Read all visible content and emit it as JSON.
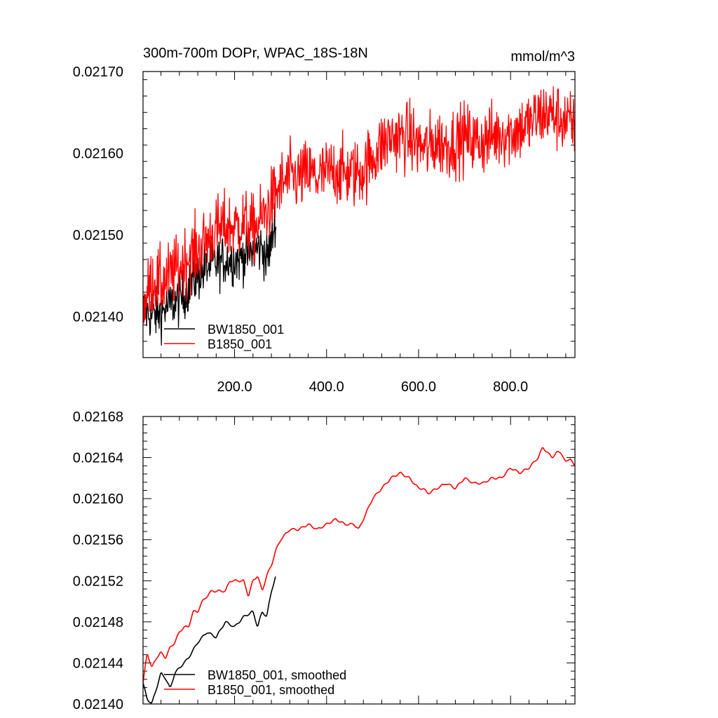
{
  "chart_data": [
    {
      "type": "line",
      "title": "300m-700m DOPr, WPAC_18S-18N",
      "units": "mmol/m^3",
      "xlim": [
        1,
        940
      ],
      "ylim": [
        0.02135,
        0.0217
      ],
      "x_tick_values": [
        200,
        400,
        600,
        800
      ],
      "x_tick_labels": [
        "200.0",
        "400.0",
        "600.0",
        "800.0"
      ],
      "y_tick_values": [
        0.0214,
        0.0215,
        0.0216,
        0.0217
      ],
      "y_tick_labels": [
        "0.02140",
        "0.02150",
        "0.02160",
        "0.02170"
      ],
      "legend": [
        {
          "name": "BW1850_001",
          "color": "#000000"
        },
        {
          "name": "B1850_001",
          "color": "#ff0000"
        }
      ],
      "series": [
        {
          "name": "BW1850_001",
          "color": "#000000",
          "noise": 2.2e-05,
          "x": [
            1,
            20,
            40,
            60,
            80,
            100,
            120,
            140,
            160,
            180,
            200,
            220,
            240,
            260,
            270,
            280,
            290
          ],
          "y": [
            0.02141,
            0.0214,
            0.021405,
            0.021415,
            0.02142,
            0.021435,
            0.02145,
            0.02146,
            0.021465,
            0.02147,
            0.02147,
            0.021475,
            0.02148,
            0.021485,
            0.02147,
            0.02149,
            0.021525
          ]
        },
        {
          "name": "B1850_001",
          "color": "#ff0000",
          "noise": 3e-05,
          "x": [
            1,
            20,
            40,
            60,
            80,
            100,
            120,
            140,
            160,
            180,
            200,
            220,
            240,
            260,
            280,
            300,
            320,
            340,
            360,
            380,
            400,
            420,
            440,
            460,
            480,
            500,
            520,
            540,
            560,
            580,
            600,
            620,
            640,
            660,
            680,
            700,
            720,
            740,
            760,
            780,
            800,
            820,
            840,
            860,
            880,
            900,
            920,
            940
          ],
          "y": [
            0.02141,
            0.021445,
            0.02144,
            0.02145,
            0.02146,
            0.021475,
            0.02148,
            0.021495,
            0.021505,
            0.02151,
            0.02151,
            0.021515,
            0.021505,
            0.02152,
            0.02154,
            0.02156,
            0.02157,
            0.02157,
            0.021575,
            0.02157,
            0.021575,
            0.02158,
            0.021575,
            0.021575,
            0.02158,
            0.021595,
            0.02161,
            0.02162,
            0.02162,
            0.02162,
            0.02161,
            0.021605,
            0.021615,
            0.02161,
            0.021615,
            0.02162,
            0.021615,
            0.021615,
            0.02162,
            0.021625,
            0.021625,
            0.02163,
            0.021635,
            0.021645,
            0.02165,
            0.021645,
            0.02164,
            0.02163
          ]
        }
      ]
    },
    {
      "type": "line",
      "xlim": [
        1,
        940
      ],
      "ylim": [
        0.0214,
        0.02168
      ],
      "x_tick_values": [
        200,
        400,
        600,
        800
      ],
      "x_tick_labels": [],
      "y_tick_values": [
        0.0214,
        0.02144,
        0.02148,
        0.02152,
        0.02156,
        0.0216,
        0.02164,
        0.02168
      ],
      "y_tick_labels": [
        "0.02140",
        "0.02144",
        "0.02148",
        "0.02152",
        "0.02156",
        "0.02160",
        "0.02164",
        "0.02168"
      ],
      "legend": [
        {
          "name": "BW1850_001, smoothed",
          "color": "#000000"
        },
        {
          "name": "B1850_001, smoothed",
          "color": "#ff0000"
        }
      ],
      "series": [
        {
          "name": "BW1850_001, smoothed",
          "color": "#000000",
          "x": [
            1,
            10,
            20,
            30,
            40,
            50,
            60,
            70,
            80,
            90,
            100,
            120,
            140,
            160,
            180,
            200,
            220,
            240,
            250,
            260,
            270,
            280,
            290
          ],
          "y": [
            0.02142,
            0.021405,
            0.0214,
            0.021415,
            0.02143,
            0.021425,
            0.021415,
            0.02143,
            0.021435,
            0.02144,
            0.021445,
            0.02146,
            0.02147,
            0.021465,
            0.02148,
            0.021475,
            0.021485,
            0.02149,
            0.021475,
            0.02149,
            0.021485,
            0.02151,
            0.021525
          ]
        },
        {
          "name": "B1850_001, smoothed",
          "color": "#ff0000",
          "x": [
            1,
            10,
            20,
            30,
            40,
            50,
            60,
            70,
            80,
            90,
            100,
            110,
            120,
            130,
            140,
            150,
            160,
            170,
            180,
            190,
            200,
            210,
            220,
            230,
            240,
            250,
            260,
            270,
            280,
            290,
            300,
            320,
            340,
            360,
            380,
            400,
            420,
            440,
            460,
            470,
            480,
            500,
            520,
            540,
            560,
            580,
            600,
            610,
            620,
            640,
            660,
            680,
            700,
            720,
            740,
            760,
            780,
            800,
            820,
            840,
            860,
            870,
            880,
            890,
            900,
            910,
            920,
            930,
            940
          ],
          "y": [
            0.02142,
            0.02145,
            0.021435,
            0.021445,
            0.02145,
            0.021445,
            0.021455,
            0.02146,
            0.02147,
            0.021475,
            0.021475,
            0.02149,
            0.02149,
            0.0215,
            0.021505,
            0.02151,
            0.02151,
            0.02151,
            0.02151,
            0.02152,
            0.02152,
            0.02152,
            0.02152,
            0.021505,
            0.02152,
            0.021525,
            0.02151,
            0.021525,
            0.021535,
            0.02155,
            0.02156,
            0.02157,
            0.02157,
            0.021575,
            0.02157,
            0.021575,
            0.02158,
            0.021575,
            0.021575,
            0.02157,
            0.02158,
            0.0216,
            0.02161,
            0.02162,
            0.021625,
            0.02162,
            0.02161,
            0.02161,
            0.021605,
            0.02161,
            0.021615,
            0.02161,
            0.02162,
            0.021615,
            0.021615,
            0.02162,
            0.02162,
            0.02163,
            0.021625,
            0.02163,
            0.02164,
            0.02165,
            0.021645,
            0.02164,
            0.021645,
            0.021645,
            0.021635,
            0.02164,
            0.02163
          ]
        }
      ]
    }
  ]
}
